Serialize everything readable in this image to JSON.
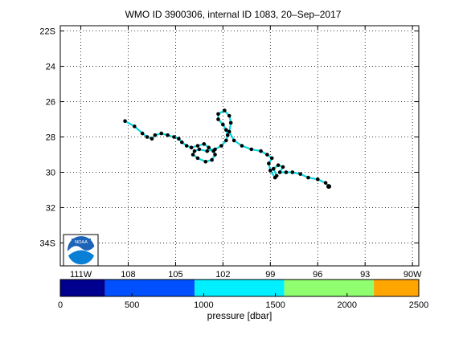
{
  "chart_data": {
    "type": "scatter",
    "title": "WMO ID 3900306, internal ID 1083, 20–Sep–2017",
    "lon_ticks": [
      {
        "value": -111,
        "label": "111W"
      },
      {
        "value": -108,
        "label": "108"
      },
      {
        "value": -105,
        "label": "105"
      },
      {
        "value": -102,
        "label": "102"
      },
      {
        "value": -99,
        "label": "99"
      },
      {
        "value": -96,
        "label": "96"
      },
      {
        "value": -93,
        "label": "93"
      },
      {
        "value": -90,
        "label": "90W"
      }
    ],
    "lat_ticks": [
      {
        "value": -22,
        "label": "22S"
      },
      {
        "value": -24,
        "label": "24"
      },
      {
        "value": -26,
        "label": "26"
      },
      {
        "value": -28,
        "label": "28"
      },
      {
        "value": -30,
        "label": "30"
      },
      {
        "value": -32,
        "label": "32"
      },
      {
        "value": -34,
        "label": "34S"
      }
    ],
    "xlim": [
      -112.3,
      -89.6
    ],
    "ylim": [
      -35.3,
      -21.7
    ],
    "grid": true,
    "logo": "noaa-logo",
    "colorbar": {
      "label": "pressure [dbar]",
      "ticks": [
        0,
        500,
        1000,
        1500,
        2000,
        2500
      ],
      "range": [
        0,
        2500
      ],
      "bands": [
        {
          "from": 0,
          "to": 312,
          "color": "#00008f"
        },
        {
          "from": 312,
          "to": 937,
          "color": "#0050ff"
        },
        {
          "from": 937,
          "to": 1562,
          "color": "#00f0ff"
        },
        {
          "from": 1562,
          "to": 2187,
          "color": "#8fff6f"
        },
        {
          "from": 2187,
          "to": 2500,
          "color": "#ffa500"
        }
      ]
    },
    "track_color": "#00d8e0",
    "point_color": "#000000",
    "track": [
      [
        -108.2,
        -27.1
      ],
      [
        -107.6,
        -27.4
      ],
      [
        -107.1,
        -27.8
      ],
      [
        -106.8,
        -28.0
      ],
      [
        -106.5,
        -28.1
      ],
      [
        -106.3,
        -27.9
      ],
      [
        -105.9,
        -27.8
      ],
      [
        -105.5,
        -27.9
      ],
      [
        -105.1,
        -28.0
      ],
      [
        -104.8,
        -28.1
      ],
      [
        -104.6,
        -28.3
      ],
      [
        -104.3,
        -28.5
      ],
      [
        -104.0,
        -28.6
      ],
      [
        -103.6,
        -28.5
      ],
      [
        -103.2,
        -28.4
      ],
      [
        -102.9,
        -28.6
      ],
      [
        -102.6,
        -28.8
      ],
      [
        -102.5,
        -29.0
      ],
      [
        -102.7,
        -29.3
      ],
      [
        -103.1,
        -29.4
      ],
      [
        -103.6,
        -29.2
      ],
      [
        -103.9,
        -29.0
      ],
      [
        -103.8,
        -28.8
      ],
      [
        -103.5,
        -28.7
      ],
      [
        -103.0,
        -28.8
      ],
      [
        -102.5,
        -28.7
      ],
      [
        -102.1,
        -28.5
      ],
      [
        -101.8,
        -28.2
      ],
      [
        -101.7,
        -27.9
      ],
      [
        -101.8,
        -27.6
      ],
      [
        -102.0,
        -27.3
      ],
      [
        -102.3,
        -27.0
      ],
      [
        -102.3,
        -26.7
      ],
      [
        -101.9,
        -26.5
      ],
      [
        -101.6,
        -26.8
      ],
      [
        -101.5,
        -27.2
      ],
      [
        -101.6,
        -27.7
      ],
      [
        -101.3,
        -28.2
      ],
      [
        -100.8,
        -28.5
      ],
      [
        -100.2,
        -28.7
      ],
      [
        -99.6,
        -28.8
      ],
      [
        -99.2,
        -29.0
      ],
      [
        -98.9,
        -29.2
      ],
      [
        -99.1,
        -29.5
      ],
      [
        -99.0,
        -29.9
      ],
      [
        -98.7,
        -30.3
      ],
      [
        -98.6,
        -30.2
      ],
      [
        -98.8,
        -29.8
      ],
      [
        -98.5,
        -29.6
      ],
      [
        -98.2,
        -29.7
      ],
      [
        -98.4,
        -30.0
      ],
      [
        -98.0,
        -30.0
      ],
      [
        -97.6,
        -30.0
      ],
      [
        -97.1,
        -30.1
      ],
      [
        -96.6,
        -30.3
      ],
      [
        -96.0,
        -30.4
      ],
      [
        -95.5,
        -30.6
      ],
      [
        -95.3,
        -30.8
      ]
    ]
  }
}
